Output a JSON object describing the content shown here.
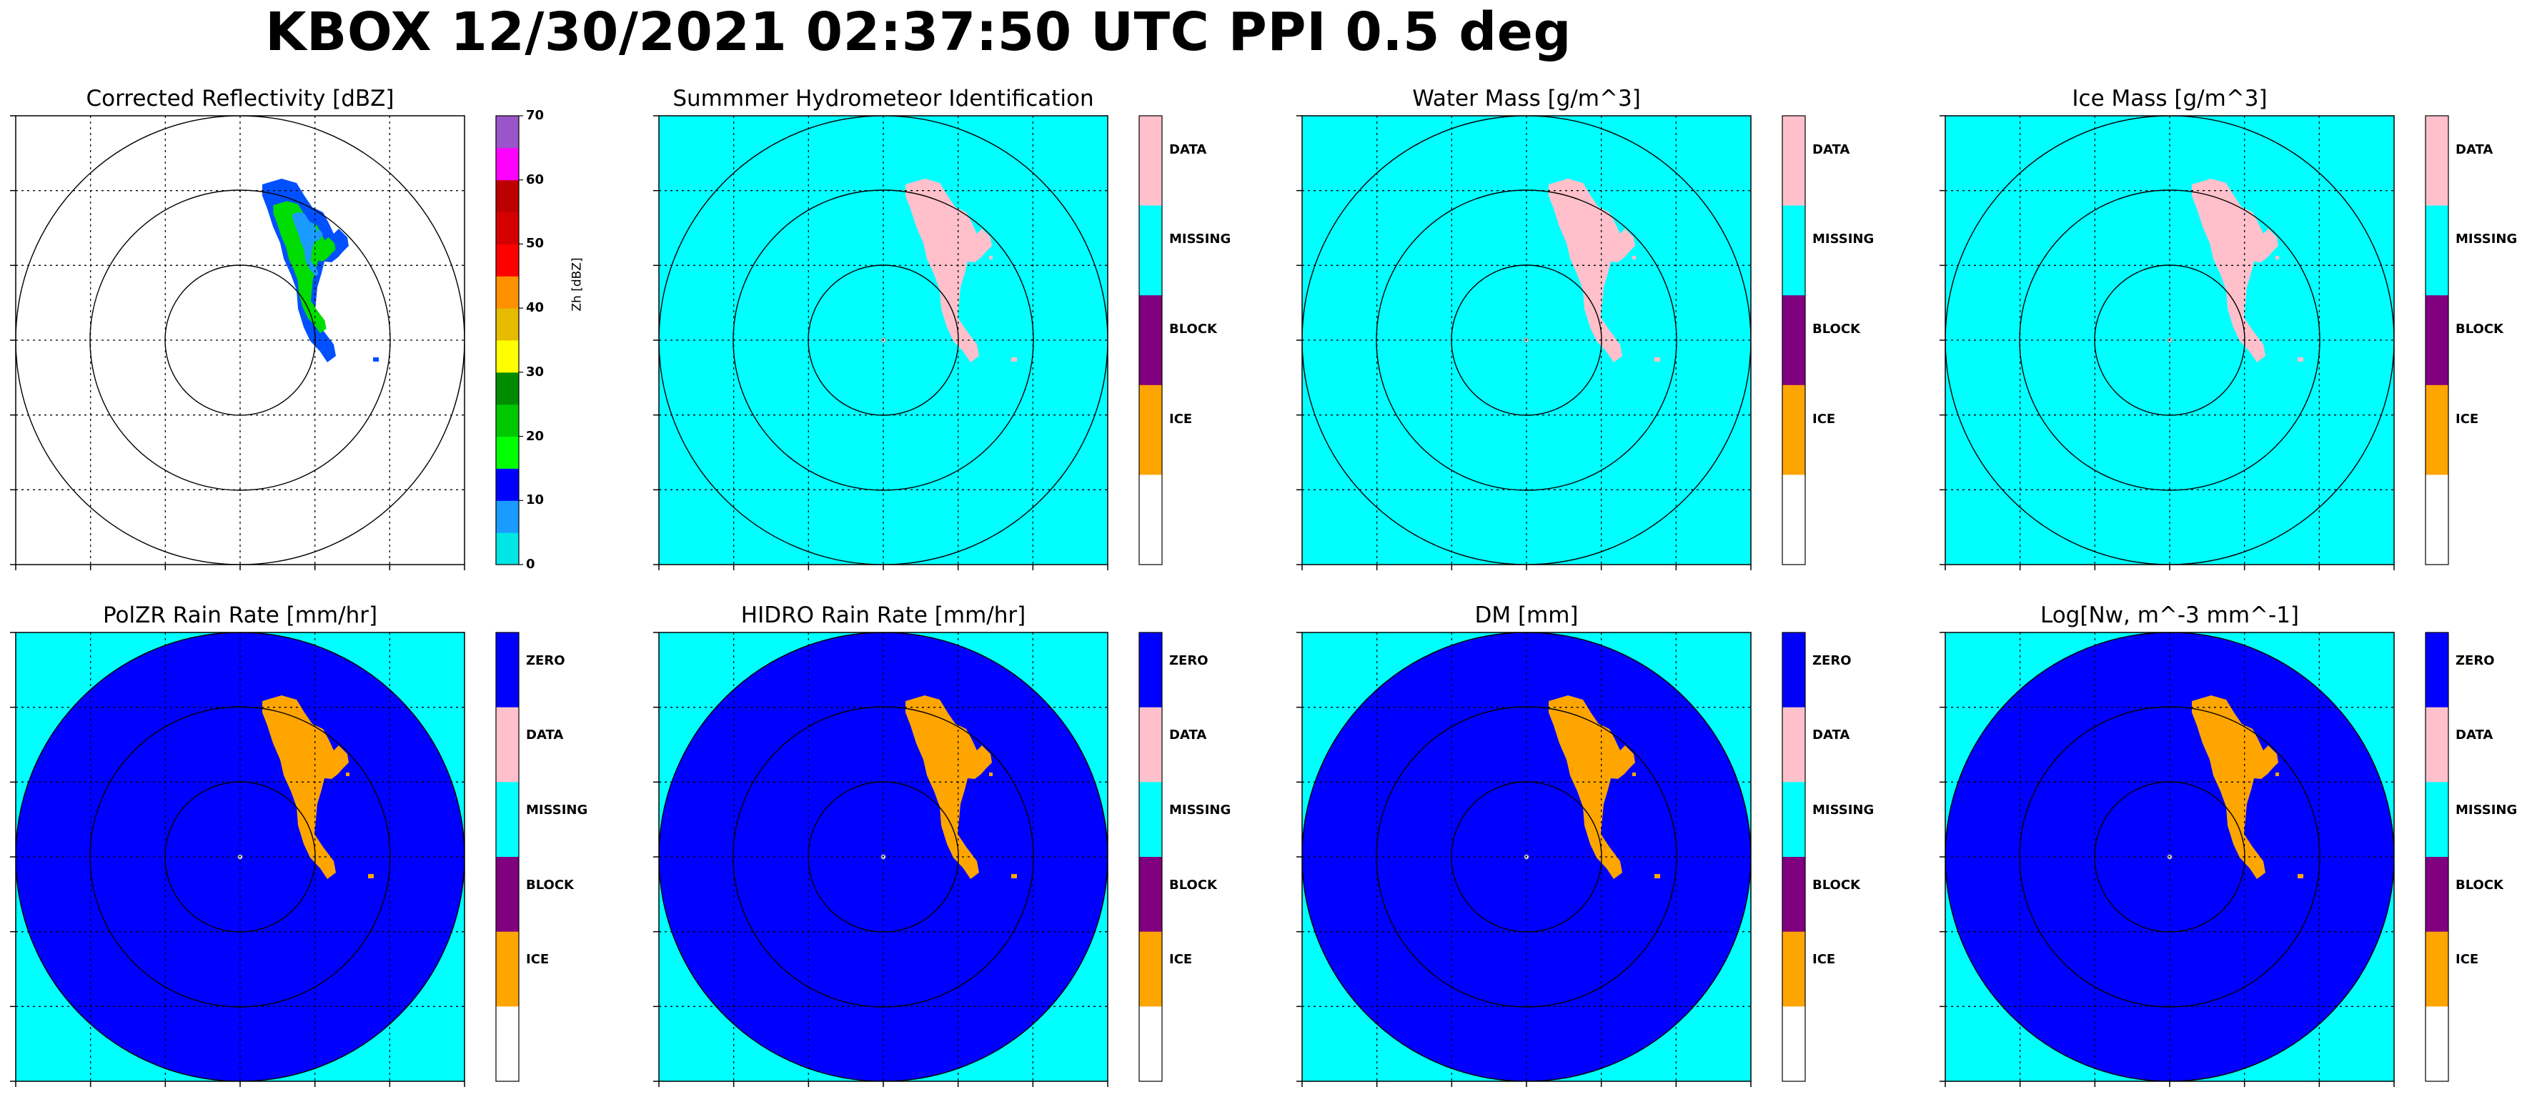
{
  "title": "KBOX 12/30/2021 02:37:50 UTC PPI 0.5 deg",
  "colors": {
    "background_missing": "#00ffff",
    "zero_fill": "#0000ff",
    "data_pink": "#ffc0cb",
    "ice_orange": "#ffa500",
    "block_purple": "#800080"
  },
  "panels": [
    {
      "title": "Corrected Reflectivity [dBZ]",
      "background": "#ffffff",
      "disk": null,
      "echo": "reflectivity",
      "colorbar": {
        "type": "continuous",
        "axis_label": "Zh [dBZ]",
        "ticks": [
          "0",
          "10",
          "20",
          "30",
          "40",
          "50",
          "60",
          "70"
        ],
        "segments": [
          "#00e5e5",
          "#1a9bff",
          "#0000ff",
          "#00ff00",
          "#00c800",
          "#008c00",
          "#ffff00",
          "#e6bc00",
          "#ff9000",
          "#ff0000",
          "#d40000",
          "#bc0000",
          "#ff00ff",
          "#9955c9"
        ]
      }
    },
    {
      "title": "Summmer Hydrometeor Identification",
      "background": "#00ffff",
      "disk": null,
      "echo": "#ffc0cb",
      "colorbar": {
        "type": "categorical",
        "labels": [
          "DATA",
          "MISSING",
          "BLOCK",
          "ICE",
          ""
        ],
        "colors": [
          "#ffc0cb",
          "#00ffff",
          "#800080",
          "#ffa500",
          "#ffffff"
        ]
      }
    },
    {
      "title": "Water Mass [g/m^3]",
      "background": "#00ffff",
      "disk": null,
      "echo": "#ffc0cb",
      "colorbar": {
        "type": "categorical",
        "labels": [
          "DATA",
          "MISSING",
          "BLOCK",
          "ICE",
          ""
        ],
        "colors": [
          "#ffc0cb",
          "#00ffff",
          "#800080",
          "#ffa500",
          "#ffffff"
        ]
      }
    },
    {
      "title": "Ice Mass [g/m^3]",
      "background": "#00ffff",
      "disk": null,
      "echo": "#ffc0cb",
      "colorbar": {
        "type": "categorical",
        "labels": [
          "DATA",
          "MISSING",
          "BLOCK",
          "ICE",
          ""
        ],
        "colors": [
          "#ffc0cb",
          "#00ffff",
          "#800080",
          "#ffa500",
          "#ffffff"
        ]
      }
    },
    {
      "title": "PolZR Rain Rate [mm/hr]",
      "background": "#00ffff",
      "disk": "#0000ff",
      "echo": "#ffa500",
      "colorbar": {
        "type": "categorical",
        "labels": [
          "ZERO",
          "DATA",
          "MISSING",
          "BLOCK",
          "ICE",
          ""
        ],
        "colors": [
          "#0000ff",
          "#ffc0cb",
          "#00ffff",
          "#800080",
          "#ffa500",
          "#ffffff"
        ]
      }
    },
    {
      "title": "HIDRO Rain Rate [mm/hr]",
      "background": "#00ffff",
      "disk": "#0000ff",
      "echo": "#ffa500",
      "colorbar": {
        "type": "categorical",
        "labels": [
          "ZERO",
          "DATA",
          "MISSING",
          "BLOCK",
          "ICE",
          ""
        ],
        "colors": [
          "#0000ff",
          "#ffc0cb",
          "#00ffff",
          "#800080",
          "#ffa500",
          "#ffffff"
        ]
      }
    },
    {
      "title": "DM [mm]",
      "background": "#00ffff",
      "disk": "#0000ff",
      "echo": "#ffa500",
      "colorbar": {
        "type": "categorical",
        "labels": [
          "ZERO",
          "DATA",
          "MISSING",
          "BLOCK",
          "ICE",
          ""
        ],
        "colors": [
          "#0000ff",
          "#ffc0cb",
          "#00ffff",
          "#800080",
          "#ffa500",
          "#ffffff"
        ]
      }
    },
    {
      "title": "Log[Nw, m^-3 mm^-1]",
      "background": "#00ffff",
      "disk": "#0000ff",
      "echo": "#ffa500",
      "colorbar": {
        "type": "categorical",
        "labels": [
          "ZERO",
          "DATA",
          "MISSING",
          "BLOCK",
          "ICE",
          ""
        ],
        "colors": [
          "#0000ff",
          "#ffc0cb",
          "#00ffff",
          "#800080",
          "#ffa500",
          "#ffffff"
        ]
      }
    }
  ],
  "chart_data": {
    "type": "heatmap",
    "title": "KBOX 12/30/2021 02:37:50 UTC PPI 0.5 deg",
    "grid": true,
    "range_rings": 3,
    "panel_count": 8
  }
}
